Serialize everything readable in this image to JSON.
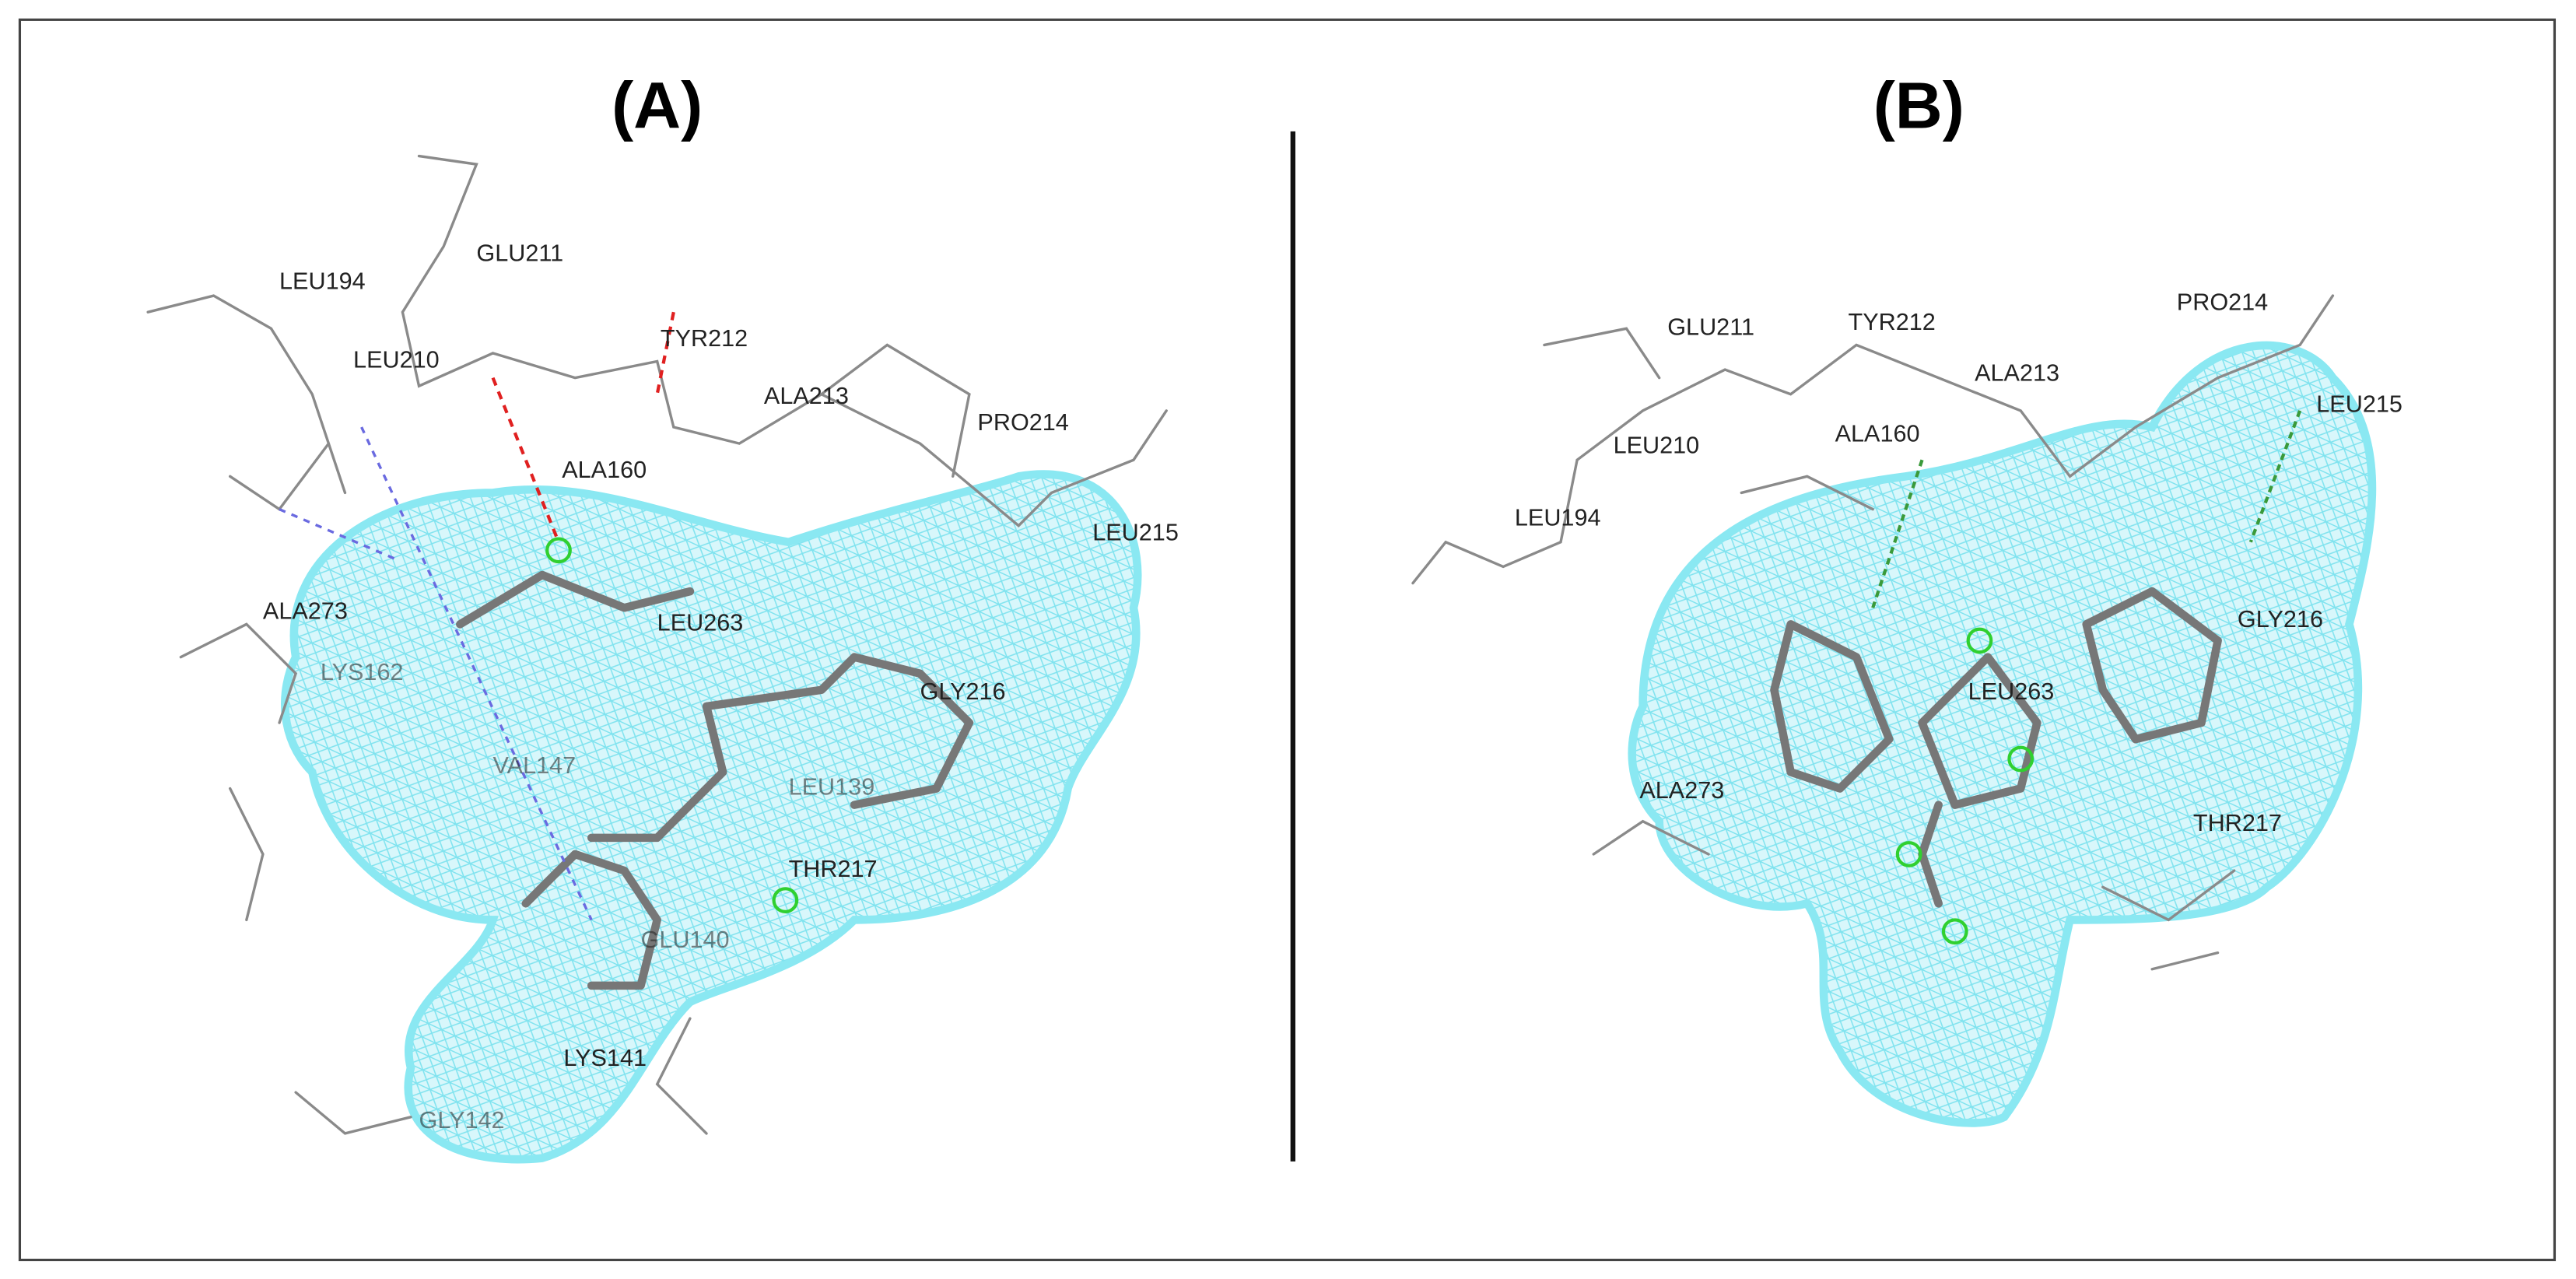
{
  "panels": [
    {
      "label": "(A)",
      "residues": [
        "GLU211",
        "LEU194",
        "LEU210",
        "TYR212",
        "ALA213",
        "PRO214",
        "ALA160",
        "LEU215",
        "ALA273",
        "LEU263",
        "LYS162",
        "GLY216",
        "VAL147",
        "LEU139",
        "THR217",
        "GLU140",
        "LYS141",
        "GLY142"
      ]
    },
    {
      "label": "(B)",
      "residues": [
        "GLU211",
        "TYR212",
        "PRO214",
        "ALA213",
        "LEU215",
        "LEU210",
        "ALA160",
        "LEU194",
        "GLY216",
        "LEU263",
        "ALA273",
        "THR217"
      ]
    }
  ]
}
